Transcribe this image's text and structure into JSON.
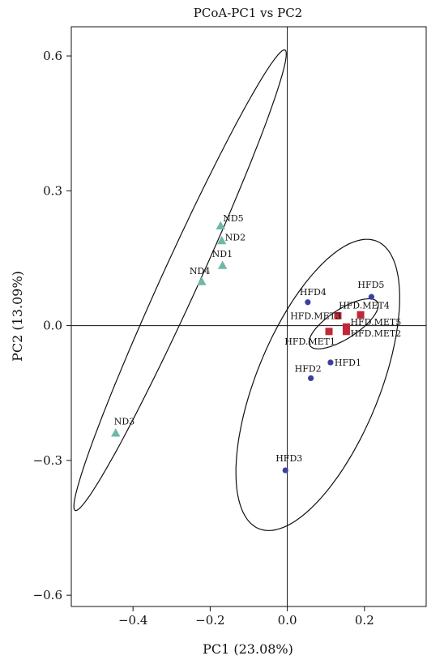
{
  "chart_data": {
    "type": "scatter",
    "title": "PCoA-PC1 vs PC2",
    "xlabel": "PC1 (23.08%)",
    "ylabel": "PC2 (13.09%)",
    "xlim": [
      -0.56,
      0.36
    ],
    "ylim": [
      -0.625,
      0.665
    ],
    "xticks": [
      -0.4,
      -0.2,
      0.0,
      0.2
    ],
    "xtick_labels": [
      "−0.4",
      "−0.2",
      "0.0",
      "0.2"
    ],
    "yticks": [
      -0.6,
      -0.3,
      0.0,
      0.3,
      0.6
    ],
    "ytick_labels": [
      "−0.6",
      "−0.3",
      "0.0",
      "0.3",
      "0.6"
    ],
    "zero_lines": true,
    "grid": false,
    "legend": "none",
    "series": [
      {
        "marker": "triangle",
        "color": "#6fb8a8",
        "points": [
          {
            "label": "ND5",
            "x": -0.173,
            "y": 0.221
          },
          {
            "label": "ND2",
            "x": -0.17,
            "y": 0.188
          },
          {
            "label": "ND1",
            "x": -0.168,
            "y": 0.133
          },
          {
            "label": "ND4",
            "x": -0.222,
            "y": 0.097
          },
          {
            "label": "ND3",
            "x": -0.445,
            "y": -0.24
          }
        ]
      },
      {
        "marker": "circle",
        "color": "#3b3f9e",
        "points": [
          {
            "label": "HFD4",
            "x": 0.053,
            "y": 0.052
          },
          {
            "label": "HFD5",
            "x": 0.218,
            "y": 0.064
          },
          {
            "label": "HFD1",
            "x": 0.112,
            "y": -0.082
          },
          {
            "label": "HFD2",
            "x": 0.061,
            "y": -0.117
          },
          {
            "label": "HFD3",
            "x": -0.005,
            "y": -0.322
          }
        ]
      },
      {
        "marker": "square",
        "color": "#c0283a",
        "points": [
          {
            "label": "HFD.MET3",
            "x": 0.131,
            "y": 0.022
          },
          {
            "label": "HFD.MET4",
            "x": 0.19,
            "y": 0.024
          },
          {
            "label": "HFD.MET5",
            "x": 0.153,
            "y": -0.003
          },
          {
            "label": "HFD.MET2",
            "x": 0.153,
            "y": -0.013
          },
          {
            "label": "HFD.MET1",
            "x": 0.108,
            "y": -0.013
          }
        ]
      }
    ],
    "ellipses": [
      {
        "color": "#111111",
        "cx": -0.278,
        "cy": 0.101,
        "rx": 0.58,
        "ry": 0.046,
        "angle_deg": 62
      },
      {
        "color": "#111111",
        "cx": 0.079,
        "cy": -0.132,
        "rx": 0.355,
        "ry": 0.155,
        "angle_deg": 63
      },
      {
        "color": "#111111",
        "cx": 0.146,
        "cy": 0.004,
        "rx": 0.1,
        "ry": 0.034,
        "angle_deg": 28
      }
    ]
  }
}
